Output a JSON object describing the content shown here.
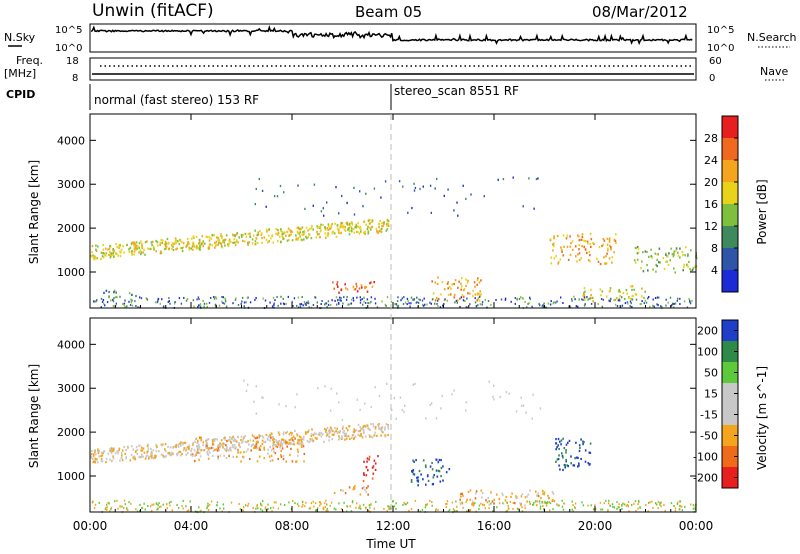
{
  "header": {
    "title": "Unwin (fitACF)",
    "beam": "Beam 05",
    "date": "08/Mar/2012"
  },
  "noise_panel": {
    "left_label": "N.Sky",
    "right_label": "N.Search",
    "left_ticks": [
      "10^5",
      "10^0"
    ],
    "right_ticks": [
      "10^5",
      "10^0"
    ]
  },
  "freq_panel": {
    "left_label_1": "Freq.",
    "left_label_2": "[MHz]",
    "right_label": "Nave",
    "left_ticks": [
      "18",
      "8"
    ],
    "right_ticks": [
      "60",
      "0"
    ]
  },
  "cpid_panel": {
    "label": "CPID",
    "mode_1": "normal (fast stereo) 153 RF",
    "mode_2": "stereo_scan 8551 RF",
    "mode_change_time": "12:00"
  },
  "colors": {
    "power": [
      "#1c2bd6",
      "#2f55a8",
      "#3f8a5c",
      "#7fbf3f",
      "#e8d21a",
      "#f5a41d",
      "#ef6a1e",
      "#e81f1f"
    ],
    "velocity": [
      "#e81f1f",
      "#f06b18",
      "#f5a41d",
      "#c8c8c8",
      "#c8c8c8",
      "#5ec93b",
      "#2f8a4a",
      "#1f3fc8"
    ],
    "ground_scatter": "#c8c8c8"
  },
  "chart_data": {
    "type": "heatmap",
    "x_ticks": [
      "00:00",
      "04:00",
      "08:00",
      "12:00",
      "16:00",
      "20:00",
      "00:00"
    ],
    "x_range_hours": [
      0,
      24
    ],
    "xlabel": "Time UT",
    "panels": [
      {
        "name": "power",
        "ylabel": "Slant Range [km]",
        "yticks": [
          "4000",
          "3000",
          "2000",
          "1000"
        ],
        "ylim_km": [
          180,
          4600
        ],
        "colorbar_label": "Power [dB]",
        "colorbar_ticks": [
          "28",
          "24",
          "20",
          "16",
          "12",
          "8",
          "4"
        ],
        "regions": [
          {
            "t0": 0.0,
            "t1": 11.8,
            "r0": 1350,
            "r1": 2200,
            "level": 4,
            "type": "band"
          },
          {
            "t0": 0.5,
            "t1": 1.8,
            "r0": 450,
            "r1": 600,
            "level": 2,
            "type": "band"
          },
          {
            "t0": 9.5,
            "t1": 11.5,
            "r0": 550,
            "r1": 800,
            "level": 6,
            "type": "band"
          },
          {
            "t0": 13.5,
            "t1": 15.5,
            "r0": 350,
            "r1": 900,
            "level": 5,
            "type": "blob"
          },
          {
            "t0": 18.2,
            "t1": 20.8,
            "r0": 1200,
            "r1": 1900,
            "level": 5,
            "type": "blob"
          },
          {
            "t0": 21.5,
            "t1": 24.0,
            "r0": 1000,
            "r1": 1600,
            "level": 3,
            "type": "blob"
          },
          {
            "t0": 19.5,
            "t1": 22.0,
            "r0": 350,
            "r1": 700,
            "level": 4,
            "type": "band"
          }
        ]
      },
      {
        "name": "velocity",
        "ylabel": "Slant Range [km]",
        "yticks": [
          "4000",
          "3000",
          "2000",
          "1000"
        ],
        "ylim_km": [
          180,
          4600
        ],
        "colorbar_label": "Velocity [m s^-1]",
        "colorbar_ticks": [
          "200",
          "100",
          "50",
          "15",
          "-15",
          "-50",
          "-100",
          "-200"
        ],
        "regions": [
          {
            "t0": 0.0,
            "t1": 11.8,
            "r0": 1350,
            "r1": 2200,
            "level": 3,
            "type": "band"
          },
          {
            "t0": 4.0,
            "t1": 8.5,
            "r0": 1350,
            "r1": 1900,
            "level": 2,
            "type": "band"
          },
          {
            "t0": 10.8,
            "t1": 11.4,
            "r0": 900,
            "r1": 1500,
            "level": 0,
            "type": "blob"
          },
          {
            "t0": 12.7,
            "t1": 14.2,
            "r0": 800,
            "r1": 1400,
            "level": 7,
            "type": "blob"
          },
          {
            "t0": 9.5,
            "t1": 11.0,
            "r0": 600,
            "r1": 800,
            "level": 2,
            "type": "band"
          },
          {
            "t0": 18.4,
            "t1": 19.8,
            "r0": 1100,
            "r1": 1900,
            "level": 7,
            "type": "blob"
          },
          {
            "t0": 14.5,
            "t1": 18.5,
            "r0": 350,
            "r1": 700,
            "level": 2,
            "type": "band"
          }
        ]
      }
    ]
  }
}
